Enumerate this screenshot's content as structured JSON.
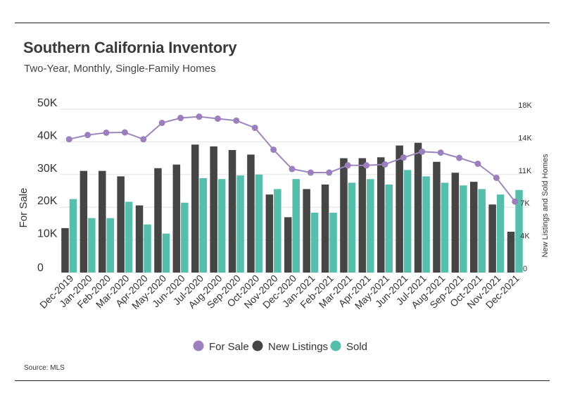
{
  "header": {
    "title": "Southern California Inventory",
    "subtitle": "Two-Year, Monthly, Single-Family Homes"
  },
  "footer": {
    "source": "Source:  MLS"
  },
  "colors": {
    "for_sale": "#9c7fbd",
    "for_sale_line": "#9d86bf",
    "new_listings": "#454545",
    "sold": "#56bfac",
    "grid": "#e2e2e2"
  },
  "chart_data": {
    "type": "bar",
    "title": "Southern California Inventory",
    "subtitle": "Two-Year, Monthly, Single-Family Homes",
    "categories": [
      "Dec-2019",
      "Jan-2020",
      "Feb-2020",
      "Mar-2020",
      "Apr-2020",
      "May-2020",
      "Jun-2020",
      "Jul-2020",
      "Aug-2020",
      "Sep-2020",
      "Oct-2020",
      "Nov-2020",
      "Dec-2020",
      "Jan-2021",
      "Feb-2021",
      "Mar-2021",
      "Apr-2021",
      "May-2021",
      "Jun-2021",
      "Jul-2021",
      "Aug-2021",
      "Sep-2021",
      "Oct-2021",
      "Nov-2021",
      "Dec-2021"
    ],
    "ylabel": "For Sale",
    "y2label": "New Listings and Sold Homes",
    "ylim": [
      0,
      50000
    ],
    "y2lim": [
      0,
      18000
    ],
    "yticks": [
      "0",
      "10K",
      "20K",
      "30K",
      "40K",
      "50K"
    ],
    "y2ticks": [
      "0",
      "4K",
      "7K",
      "11K",
      "14K",
      "18K"
    ],
    "grid": true,
    "legend_position": "bottom",
    "series": [
      {
        "name": "For Sale",
        "kind": "line",
        "axis": "left",
        "values": [
          40800,
          42100,
          42800,
          42900,
          40800,
          45800,
          47300,
          47700,
          47100,
          46500,
          44300,
          37600,
          31700,
          30600,
          30600,
          32800,
          32800,
          33100,
          35200,
          37000,
          36700,
          35100,
          33300,
          29000,
          21700
        ]
      },
      {
        "name": "New Listings",
        "kind": "bar",
        "axis": "right",
        "values": [
          4900,
          11200,
          11200,
          10600,
          7400,
          11500,
          11900,
          14100,
          13900,
          13500,
          13000,
          8600,
          6100,
          9200,
          9700,
          12600,
          12600,
          12700,
          14000,
          14300,
          12200,
          11000,
          10000,
          7500,
          4500
        ]
      },
      {
        "name": "Sold",
        "kind": "bar",
        "axis": "right",
        "values": [
          8100,
          6000,
          6000,
          7800,
          5300,
          4300,
          7700,
          10400,
          10300,
          10700,
          10800,
          9200,
          10300,
          6600,
          6600,
          9900,
          10300,
          9700,
          11300,
          10600,
          9900,
          9600,
          9200,
          8600,
          9100
        ]
      }
    ]
  }
}
